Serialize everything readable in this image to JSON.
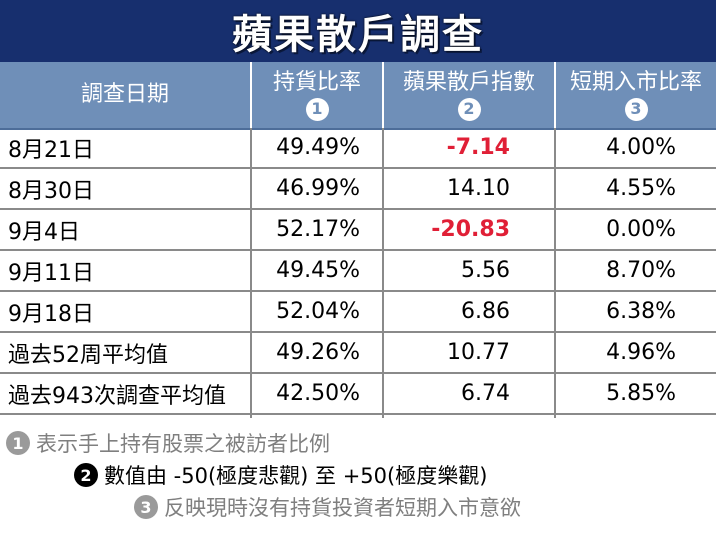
{
  "title": "蘋果散戶調查",
  "columns": [
    {
      "label": "調查日期",
      "marker": ""
    },
    {
      "label": "持貨比率",
      "marker": "1"
    },
    {
      "label": "蘋果散戶指數",
      "marker": "2"
    },
    {
      "label": "短期入市比率",
      "marker": "3"
    }
  ],
  "rows": [
    {
      "date": "8月21日",
      "holding": "49.49%",
      "index": "-7.14",
      "short": "4.00%"
    },
    {
      "date": "8月30日",
      "holding": "46.99%",
      "index": "14.10",
      "short": "4.55%"
    },
    {
      "date": "9月4日",
      "holding": "52.17%",
      "index": "-20.83",
      "short": "0.00%"
    },
    {
      "date": "9月11日",
      "holding": "49.45%",
      "index": "5.56",
      "short": "8.70%"
    },
    {
      "date": "9月18日",
      "holding": "52.04%",
      "index": "6.86",
      "short": "6.38%"
    },
    {
      "date": "過去52周平均值",
      "holding": "49.26%",
      "index": "10.77",
      "short": "4.96%"
    },
    {
      "date": "過去943次調查平均值",
      "holding": "42.50%",
      "index": "6.74",
      "short": "5.85%"
    }
  ],
  "notes": [
    {
      "marker": "1",
      "text": "表示手上持有股票之被訪者比例"
    },
    {
      "marker": "2",
      "text": "數值由 -50(極度悲觀) 至 +50(極度樂觀)"
    },
    {
      "marker": "3",
      "text": "反映現時沒有持貨投資者短期入市意欲"
    }
  ],
  "colors": {
    "title_bg": "#172f6e",
    "header_bg": "#6f8fb8",
    "negative": "#e01f36",
    "note_grey": "#7f7f7f"
  }
}
